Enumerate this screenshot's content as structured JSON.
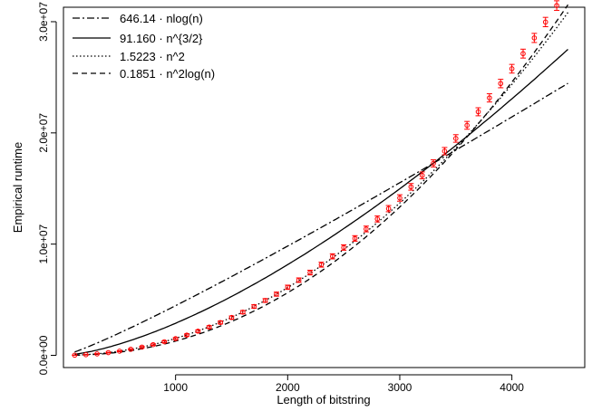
{
  "chart_data": {
    "type": "line",
    "xlabel": "Length of bitstring",
    "ylabel": "Empirical runtime",
    "xlim": [
      0,
      4650
    ],
    "ylim": [
      -1100000,
      31300000
    ],
    "x_ticks": [
      1000,
      2000,
      3000,
      4000
    ],
    "x_tick_labels": [
      "1000",
      "2000",
      "3000",
      "4000"
    ],
    "y_ticks": [
      0,
      10000000,
      20000000,
      30000000
    ],
    "y_tick_labels": [
      "0.0e+00",
      "1.0e+07",
      "2.0e+07",
      "3.0e+07"
    ],
    "grid": false,
    "legend_position": "top-left",
    "legend": [
      {
        "name": "646.14 · nlog(n)",
        "dash": "dashdot"
      },
      {
        "name": "91.160 · n^{3/2}",
        "dash": "solid"
      },
      {
        "name": "1.5223 · n^2",
        "dash": "dotted"
      },
      {
        "name": "0.1851 · n^2log(n)",
        "dash": "dashed"
      }
    ],
    "fits": [
      {
        "name": "646.14 · nlog(n)",
        "formula": "nlogn",
        "coef": 646.14,
        "dash": "dashdot"
      },
      {
        "name": "91.160 · n^{3/2}",
        "formula": "n15",
        "coef": 91.16,
        "dash": "solid"
      },
      {
        "name": "1.5223 · n^2",
        "formula": "n2",
        "coef": 1.5223,
        "dash": "dotted"
      },
      {
        "name": "0.1851 · n^2log(n)",
        "formula": "n2logn",
        "coef": 0.1851,
        "dash": "dashed"
      }
    ],
    "fit_x_range": [
      100,
      4500
    ],
    "points": {
      "color": "#ff0000",
      "x": [
        100,
        200,
        300,
        400,
        500,
        600,
        700,
        800,
        900,
        1000,
        1100,
        1200,
        1300,
        1400,
        1500,
        1600,
        1700,
        1800,
        1900,
        2000,
        2100,
        2200,
        2300,
        2400,
        2500,
        2600,
        2700,
        2800,
        2900,
        3000,
        3100,
        3200,
        3300,
        3400,
        3500,
        3600,
        3700,
        3800,
        3900,
        4000,
        4100,
        4200,
        4300,
        4400,
        4500
      ],
      "y": [
        12000,
        55000,
        130000,
        240000,
        370000,
        540000,
        740000,
        960000,
        1220000,
        1500000,
        1820000,
        2170000,
        2540000,
        2950000,
        3400000,
        3880000,
        4390000,
        4930000,
        5500000,
        6120000,
        6760000,
        7440000,
        8150000,
        8900000,
        9690000,
        10510000,
        11360000,
        12260000,
        13190000,
        14150000,
        15150000,
        16180000,
        17260000,
        18360000,
        19500000,
        20680000,
        21900000,
        23150000,
        24440000,
        25770000,
        27130000,
        28540000,
        29970000,
        31450000,
        32950000
      ],
      "err": [
        10000,
        15000,
        20000,
        30000,
        40000,
        50000,
        60000,
        70000,
        80000,
        90000,
        100000,
        110000,
        120000,
        130000,
        140000,
        150000,
        160000,
        170000,
        180000,
        190000,
        200000,
        210000,
        220000,
        230000,
        240000,
        250000,
        260000,
        270000,
        280000,
        290000,
        300000,
        310000,
        320000,
        330000,
        340000,
        350000,
        360000,
        370000,
        380000,
        390000,
        400000,
        410000,
        420000,
        430000,
        440000
      ]
    }
  }
}
